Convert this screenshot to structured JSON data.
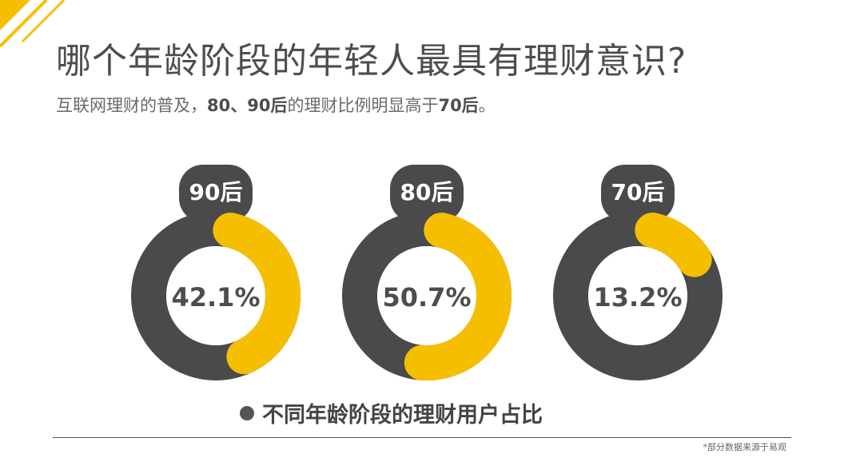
{
  "page": {
    "title": "哪个年龄阶段的年轻人最具有理财意识?",
    "subtitle_parts": [
      "互联网理财的普及，",
      "80、90后",
      "的理财比例明显高于",
      "70后",
      "。"
    ],
    "source_note": "*部分数据来源于易观"
  },
  "colors": {
    "accent": "#f5bf00",
    "ring": "#4a4a4a",
    "text_dark": "#4d4d4d"
  },
  "chart_data": {
    "type": "pie",
    "title": "哪个年龄阶段的年轻人最具有理财意识?",
    "legend": "不同年龄阶段的理财用户占比",
    "categories": [
      "90后",
      "80后",
      "70后"
    ],
    "values": [
      42.1,
      50.7,
      13.2
    ],
    "value_labels": [
      "42.1%",
      "50.7%",
      "13.2%"
    ],
    "unit": "%"
  }
}
